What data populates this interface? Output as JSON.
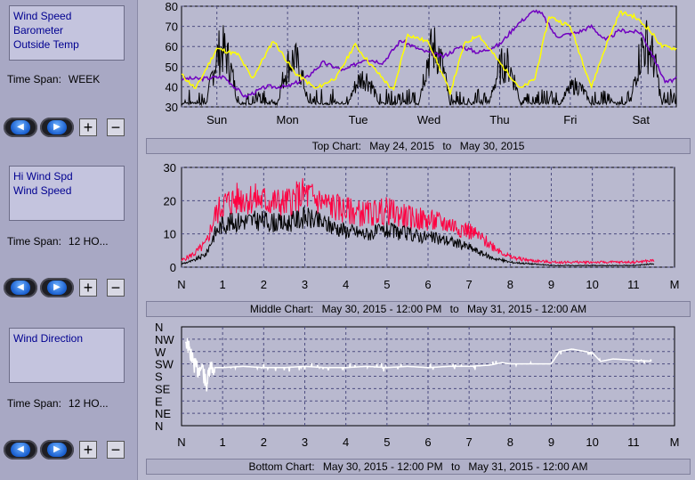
{
  "panels": [
    {
      "series_labels": [
        "Wind Speed",
        "Barometer",
        "Outside Temp"
      ],
      "timespan_label": "Time Span:",
      "timespan_value": "WEEK",
      "caption": {
        "name": "Top Chart:",
        "from": "May 24, 2015",
        "sep": "to",
        "to": "May 30, 2015"
      }
    },
    {
      "series_labels": [
        "Hi Wind Spd",
        "Wind Speed"
      ],
      "timespan_label": "Time Span:",
      "timespan_value": "12 HO...",
      "caption": {
        "name": "Middle Chart:",
        "from": "May 30, 2015 - 12:00 PM",
        "sep": "to",
        "to": "May 31, 2015 - 12:00 AM"
      }
    },
    {
      "series_labels": [
        "Wind Direction"
      ],
      "timespan_label": "Time Span:",
      "timespan_value": "12 HO...",
      "caption": {
        "name": "Bottom Chart:",
        "from": "May 30, 2015 - 12:00 PM",
        "sep": "to",
        "to": "May 31, 2015 - 12:00 AM"
      }
    }
  ],
  "controls": {
    "prev_icon": "left-arrow-icon",
    "next_icon": "right-arrow-icon",
    "plus": "+",
    "minus": "−"
  },
  "colors": {
    "background": "#b9b9cf",
    "plot_bg": "#b9b9cf",
    "grid": "#4d4d80",
    "wind_speed": "#000000",
    "barometer": "#ffff00",
    "outside_temp": "#7000c0",
    "hi_wind": "#ff0040",
    "wind_dir": "#ffffff"
  },
  "chart_data": [
    {
      "type": "line",
      "ylim": [
        30,
        80
      ],
      "yticks": [
        "30",
        "40",
        "50",
        "60",
        "70",
        "80"
      ],
      "x_ticks": [
        "Sun",
        "Mon",
        "Tue",
        "Wed",
        "Thu",
        "Fri",
        "Sat"
      ],
      "xlim_days": [
        0,
        7
      ],
      "grid": true,
      "series": [
        {
          "name": "Outside Temp",
          "x": [
            0.0,
            0.3,
            0.6,
            0.9,
            1.2,
            1.5,
            1.75,
            2.0,
            2.3,
            2.6,
            2.85,
            3.1,
            3.4,
            3.7,
            3.95,
            4.2,
            4.5,
            4.75,
            5.0,
            5.1,
            5.3,
            5.6,
            5.8,
            6.0,
            6.2,
            6.5,
            6.7,
            6.85,
            7.0
          ],
          "values": [
            44,
            44,
            45,
            35,
            40,
            40,
            44,
            52,
            48,
            54,
            52,
            63,
            58,
            55,
            60,
            57,
            61,
            71,
            78,
            76,
            65,
            67,
            70,
            63,
            68,
            67,
            53,
            42,
            44
          ]
        },
        {
          "name": "Barometer",
          "x": [
            0.0,
            0.2,
            0.5,
            0.8,
            1.0,
            1.3,
            1.6,
            1.9,
            2.2,
            2.45,
            2.7,
            3.0,
            3.2,
            3.5,
            3.8,
            4.0,
            4.2,
            4.5,
            4.8,
            5.0,
            5.2,
            5.5,
            5.8,
            6.0,
            6.2,
            6.4,
            6.6,
            6.8,
            7.0
          ],
          "values": [
            46,
            39,
            59,
            56,
            44,
            63,
            47,
            39,
            45,
            61,
            50,
            38,
            66,
            62,
            37,
            61,
            66,
            52,
            39,
            44,
            75,
            70,
            40,
            60,
            77,
            75,
            69,
            60,
            59
          ]
        },
        {
          "name": "Wind Speed",
          "day_peaks": [
            71,
            64,
            51,
            72,
            61,
            45,
            75
          ],
          "night_base": 31
        }
      ]
    },
    {
      "type": "line",
      "ylim": [
        0,
        30
      ],
      "yticks": [
        "0",
        "10",
        "20",
        "30"
      ],
      "x_ticks": [
        "N",
        "1",
        "2",
        "3",
        "4",
        "5",
        "6",
        "7",
        "8",
        "9",
        "10",
        "11",
        "M"
      ],
      "xlim_hours": [
        0,
        12
      ],
      "grid": true,
      "series": [
        {
          "name": "Hi Wind Spd",
          "x": [
            0,
            0.3,
            0.6,
            0.8,
            1.0,
            1.5,
            2.0,
            2.5,
            3.0,
            3.5,
            4.0,
            4.5,
            5.0,
            5.5,
            6.0,
            6.5,
            7.0,
            7.5,
            8.0,
            8.5,
            9.0,
            9.5,
            10.0,
            10.5,
            11.0,
            11.5
          ],
          "values": [
            2,
            4,
            7,
            15,
            19,
            21,
            20,
            19,
            22,
            19,
            17,
            16,
            17,
            15,
            14,
            13,
            11,
            7,
            3,
            2,
            1.5,
            1.5,
            1.5,
            1.5,
            1.5,
            2
          ]
        },
        {
          "name": "Wind Speed",
          "x": [
            0,
            0.3,
            0.6,
            0.8,
            1.0,
            1.5,
            2.0,
            2.5,
            3.0,
            3.5,
            4.0,
            4.5,
            5.0,
            5.5,
            6.0,
            6.5,
            7.0,
            7.5,
            8.0,
            8.5,
            9.0,
            9.5,
            10.0,
            10.5,
            11.0,
            11.5
          ],
          "values": [
            1,
            2,
            4,
            10,
            13,
            14,
            14,
            13,
            15,
            13,
            11,
            10,
            11,
            10,
            9,
            8,
            6,
            3,
            1.5,
            1,
            0.5,
            0.5,
            0.5,
            0.5,
            0.5,
            1
          ]
        }
      ]
    },
    {
      "type": "scatter",
      "yticks": [
        "N",
        "NW",
        "W",
        "SW",
        "S",
        "SE",
        "E",
        "NE",
        "N"
      ],
      "x_ticks": [
        "N",
        "1",
        "2",
        "3",
        "4",
        "5",
        "6",
        "7",
        "8",
        "9",
        "10",
        "11",
        "M"
      ],
      "xlim_hours": [
        0,
        12
      ],
      "grid": true,
      "series": [
        {
          "name": "Wind Direction",
          "x": [
            0.1,
            0.2,
            0.3,
            0.4,
            0.5,
            0.6,
            0.7,
            0.8,
            1.0,
            1.5,
            2.0,
            2.5,
            3.0,
            3.5,
            4.0,
            4.5,
            5.0,
            5.5,
            6.0,
            6.5,
            7.0,
            7.5,
            7.8,
            8.0,
            8.5,
            9.0,
            9.2,
            9.5,
            10.0,
            10.2,
            10.5,
            11.0,
            11.5
          ],
          "values": [
            1,
            2,
            3,
            3.5,
            3.2,
            4.8,
            3.4,
            3.3,
            3.3,
            3.2,
            3.3,
            3.3,
            3.2,
            3.3,
            3.3,
            3.2,
            3.3,
            3.2,
            3.3,
            3.2,
            3.2,
            3.1,
            2.9,
            3.0,
            3.0,
            3.0,
            2.0,
            1.8,
            2.1,
            2.8,
            2.6,
            2.7,
            2.8
          ]
        }
      ]
    }
  ]
}
